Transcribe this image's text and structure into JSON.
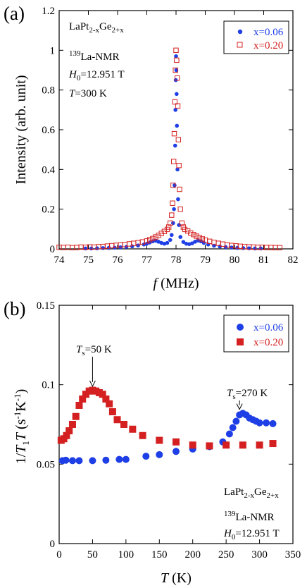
{
  "chart_data": [
    {
      "panel": "(a)",
      "type": "scatter",
      "xlabel": "f (MHz)",
      "xlabel_var": "f",
      "xlabel_unit": " (MHz)",
      "ylabel": "Intensity (arb. unit)",
      "xlim": [
        74,
        82
      ],
      "ylim": [
        0,
        1.2
      ],
      "xticks": [
        "74",
        "75",
        "76",
        "77",
        "78",
        "79",
        "80",
        "81",
        "82"
      ],
      "yticks": [
        "0",
        "0.2",
        "0.4",
        "0.6",
        "0.8",
        "1",
        "1.2"
      ],
      "legend_position": "top-right",
      "annotations": {
        "compound": "LaPt2-xGe2+x",
        "nucleus": "139La-NMR",
        "field": "H0=12.951 T",
        "temperature": "T=300 K"
      },
      "annotation_parts": {
        "compound_a": "LaPt",
        "compound_s1": "2-x",
        "compound_b": "Ge",
        "compound_s2": "2+x",
        "nucleus_sup": "139",
        "nucleus_rest": "La-NMR",
        "field_var": "H",
        "field_sub": "0",
        "field_rest": "=12.951 T",
        "temp_var": "T",
        "temp_rest": "=300 K"
      },
      "series": [
        {
          "name": "x=0.06",
          "color": "#1f3fe6",
          "marker": "filled-circle",
          "points": [
            [
              74.9,
              0.002
            ],
            [
              75.1,
              0.002
            ],
            [
              75.3,
              0.003
            ],
            [
              75.5,
              0.004
            ],
            [
              75.7,
              0.005
            ],
            [
              75.9,
              0.006
            ],
            [
              76.1,
              0.008
            ],
            [
              76.3,
              0.01
            ],
            [
              76.5,
              0.013
            ],
            [
              76.7,
              0.017
            ],
            [
              76.9,
              0.022
            ],
            [
              77.0,
              0.026
            ],
            [
              77.1,
              0.032
            ],
            [
              77.2,
              0.038
            ],
            [
              77.3,
              0.041
            ],
            [
              77.4,
              0.036
            ],
            [
              77.5,
              0.03
            ],
            [
              77.6,
              0.026
            ],
            [
              77.7,
              0.03
            ],
            [
              77.8,
              0.045
            ],
            [
              77.85,
              0.07
            ],
            [
              77.9,
              0.13
            ],
            [
              77.93,
              0.2
            ],
            [
              77.95,
              0.32
            ],
            [
              77.97,
              0.52
            ],
            [
              77.98,
              0.7
            ],
            [
              77.99,
              0.85
            ],
            [
              78.0,
              0.97
            ],
            [
              78.01,
              0.9
            ],
            [
              78.02,
              0.78
            ],
            [
              78.03,
              0.62
            ],
            [
              78.05,
              0.4
            ],
            [
              78.07,
              0.25
            ],
            [
              78.1,
              0.12
            ],
            [
              78.15,
              0.06
            ],
            [
              78.25,
              0.035
            ],
            [
              78.35,
              0.026
            ],
            [
              78.45,
              0.024
            ],
            [
              78.55,
              0.028
            ],
            [
              78.65,
              0.036
            ],
            [
              78.75,
              0.042
            ],
            [
              78.85,
              0.038
            ],
            [
              78.95,
              0.03
            ],
            [
              79.1,
              0.022
            ],
            [
              79.3,
              0.016
            ],
            [
              79.5,
              0.012
            ],
            [
              79.7,
              0.009
            ],
            [
              79.9,
              0.007
            ],
            [
              80.1,
              0.005
            ],
            [
              80.3,
              0.004
            ],
            [
              80.5,
              0.003
            ],
            [
              80.7,
              0.002
            ],
            [
              80.9,
              0.002
            ]
          ]
        },
        {
          "name": "x=0.20",
          "color": "#d42020",
          "marker": "open-square",
          "points": [
            [
              74.0,
              0.008
            ],
            [
              74.15,
              0.007
            ],
            [
              74.3,
              0.008
            ],
            [
              74.45,
              0.006
            ],
            [
              74.6,
              0.007
            ],
            [
              74.75,
              0.009
            ],
            [
              74.9,
              0.008
            ],
            [
              75.05,
              0.01
            ],
            [
              75.2,
              0.009
            ],
            [
              75.35,
              0.011
            ],
            [
              75.5,
              0.012
            ],
            [
              75.65,
              0.014
            ],
            [
              75.8,
              0.016
            ],
            [
              75.95,
              0.018
            ],
            [
              76.1,
              0.02
            ],
            [
              76.25,
              0.022
            ],
            [
              76.4,
              0.025
            ],
            [
              76.55,
              0.028
            ],
            [
              76.7,
              0.031
            ],
            [
              76.85,
              0.035
            ],
            [
              77.0,
              0.04
            ],
            [
              77.1,
              0.046
            ],
            [
              77.2,
              0.052
            ],
            [
              77.3,
              0.06
            ],
            [
              77.4,
              0.068
            ],
            [
              77.5,
              0.078
            ],
            [
              77.6,
              0.088
            ],
            [
              77.7,
              0.098
            ],
            [
              77.75,
              0.11
            ],
            [
              77.8,
              0.13
            ],
            [
              77.85,
              0.17
            ],
            [
              77.88,
              0.23
            ],
            [
              77.9,
              0.32
            ],
            [
              77.92,
              0.44
            ],
            [
              77.94,
              0.58
            ],
            [
              77.96,
              0.74
            ],
            [
              77.98,
              0.9
            ],
            [
              78.0,
              1.0
            ],
            [
              78.02,
              0.95
            ],
            [
              78.04,
              0.86
            ],
            [
              78.06,
              0.72
            ],
            [
              78.08,
              0.55
            ],
            [
              78.1,
              0.42
            ],
            [
              78.12,
              0.3
            ],
            [
              78.15,
              0.2
            ],
            [
              78.2,
              0.13
            ],
            [
              78.25,
              0.11
            ],
            [
              78.3,
              0.098
            ],
            [
              78.4,
              0.09
            ],
            [
              78.5,
              0.08
            ],
            [
              78.6,
              0.072
            ],
            [
              78.7,
              0.064
            ],
            [
              78.8,
              0.057
            ],
            [
              78.9,
              0.05
            ],
            [
              79.0,
              0.044
            ],
            [
              79.15,
              0.038
            ],
            [
              79.3,
              0.033
            ],
            [
              79.45,
              0.028
            ],
            [
              79.6,
              0.024
            ],
            [
              79.75,
              0.02
            ],
            [
              79.9,
              0.017
            ],
            [
              80.05,
              0.015
            ],
            [
              80.2,
              0.013
            ],
            [
              80.35,
              0.011
            ],
            [
              80.5,
              0.01
            ],
            [
              80.65,
              0.009
            ],
            [
              80.8,
              0.008
            ],
            [
              80.95,
              0.008
            ],
            [
              81.1,
              0.007
            ],
            [
              81.25,
              0.007
            ],
            [
              81.4,
              0.006
            ],
            [
              81.55,
              0.006
            ]
          ]
        }
      ]
    },
    {
      "panel": "(b)",
      "type": "scatter",
      "xlabel": "T (K)",
      "xlabel_var": "T",
      "xlabel_unit": " (K)",
      "ylabel": "1/T1T (s-1K-1)",
      "ylabel_parts": {
        "a": "1/",
        "var1": "T",
        "sub": "1",
        "var2": "T",
        "b": " (s",
        "sup1": "-1",
        "c": "K",
        "sup2": "-1",
        "d": ")"
      },
      "xlim": [
        0,
        350
      ],
      "ylim": [
        0,
        0.15
      ],
      "xticks": [
        "0",
        "50",
        "100",
        "150",
        "200",
        "250",
        "300",
        "350"
      ],
      "yticks": [
        "0",
        "0.05",
        "0.1",
        "0.15"
      ],
      "legend_position": "top-right",
      "annotations": {
        "ts_left": "Ts=50 K",
        "ts_right": "Ts=270 K",
        "compound": "LaPt2-xGe2+x",
        "nucleus": "139La-NMR",
        "field": "H0=12.951 T"
      },
      "annotation_parts": {
        "ts_var": "T",
        "ts_sub": "s",
        "ts_left_rest": "=50 K",
        "ts_right_rest": "=270 K",
        "compound_a": "LaPt",
        "compound_s1": "2-x",
        "compound_b": "Ge",
        "compound_s2": "2+x",
        "nucleus_sup": "139",
        "nucleus_rest": "La-NMR",
        "field_var": "H",
        "field_sub": "0",
        "field_rest": "=12.951 T"
      },
      "arrows_at": [
        50,
        270
      ],
      "series": [
        {
          "name": "x=0.06",
          "color": "#1f3fe6",
          "marker": "filled-circle",
          "points": [
            [
              5,
              0.0522
            ],
            [
              10,
              0.0525
            ],
            [
              20,
              0.0522
            ],
            [
              30,
              0.0522
            ],
            [
              50,
              0.0522
            ],
            [
              70,
              0.0525
            ],
            [
              90,
              0.053
            ],
            [
              100,
              0.053
            ],
            [
              130,
              0.055
            ],
            [
              150,
              0.056
            ],
            [
              175,
              0.058
            ],
            [
              200,
              0.0595
            ],
            [
              225,
              0.061
            ],
            [
              245,
              0.064
            ],
            [
              255,
              0.069
            ],
            [
              260,
              0.073
            ],
            [
              265,
              0.077
            ],
            [
              270,
              0.081
            ],
            [
              275,
              0.082
            ],
            [
              280,
              0.081
            ],
            [
              285,
              0.079
            ],
            [
              290,
              0.078
            ],
            [
              295,
              0.077
            ],
            [
              300,
              0.076
            ],
            [
              310,
              0.076
            ],
            [
              320,
              0.0755
            ]
          ]
        },
        {
          "name": "x=0.20",
          "color": "#d42020",
          "marker": "filled-square",
          "points": [
            [
              3,
              0.065
            ],
            [
              7,
              0.066
            ],
            [
              11,
              0.068
            ],
            [
              15,
              0.071
            ],
            [
              20,
              0.075
            ],
            [
              25,
              0.08
            ],
            [
              30,
              0.087
            ],
            [
              35,
              0.091
            ],
            [
              40,
              0.094
            ],
            [
              45,
              0.096
            ],
            [
              50,
              0.0965
            ],
            [
              55,
              0.096
            ],
            [
              60,
              0.095
            ],
            [
              65,
              0.094
            ],
            [
              70,
              0.091
            ],
            [
              75,
              0.088
            ],
            [
              80,
              0.083
            ],
            [
              87,
              0.078
            ],
            [
              97,
              0.075
            ],
            [
              110,
              0.072
            ],
            [
              125,
              0.068
            ],
            [
              150,
              0.065
            ],
            [
              175,
              0.064
            ],
            [
              200,
              0.062
            ],
            [
              225,
              0.0615
            ],
            [
              250,
              0.062
            ],
            [
              275,
              0.062
            ],
            [
              300,
              0.062
            ],
            [
              320,
              0.063
            ]
          ]
        }
      ]
    }
  ]
}
